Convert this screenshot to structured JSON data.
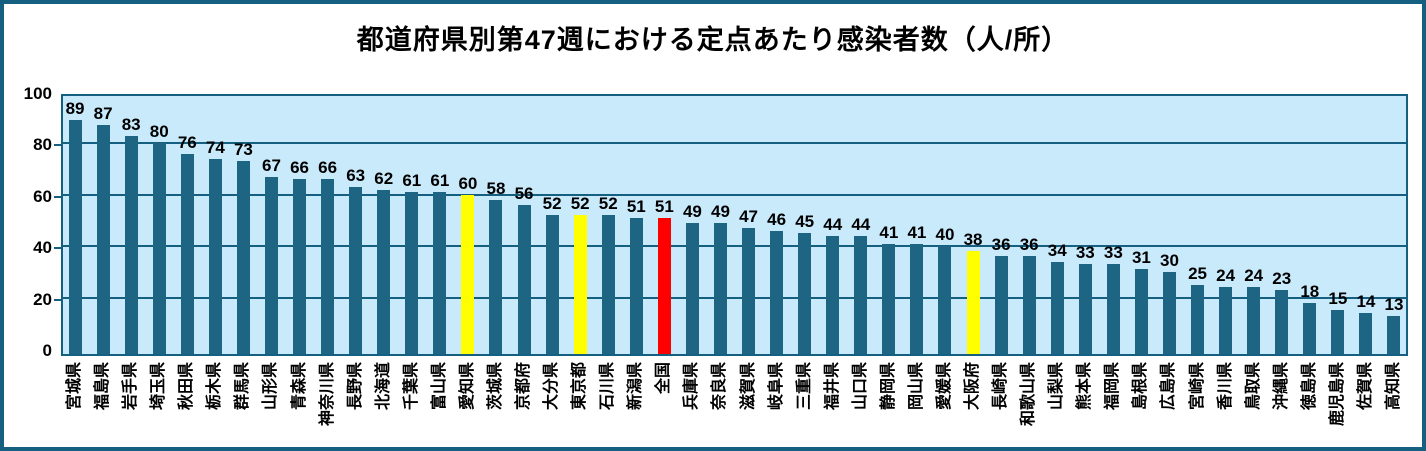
{
  "title": "都道府県別第47週における定点あたり感染者数（人/所）",
  "colors": {
    "frame": "#155f80",
    "plot_background": "#c9eafb",
    "gridline": "#155f80",
    "bar_default": "#1d6583",
    "bar_highlight_yellow": "#ffff00",
    "bar_highlight_red": "#ff0000",
    "text": "#000000"
  },
  "chart_data": {
    "type": "bar",
    "title": "都道府県別第47週における定点あたり感染者数（人/所）",
    "xlabel": "",
    "ylabel": "",
    "ylim": [
      0,
      100
    ],
    "yticks": [
      0,
      20,
      40,
      60,
      80,
      100
    ],
    "grid": true,
    "legend": "none",
    "categories": [
      "宮城県",
      "福島県",
      "岩手県",
      "埼玉県",
      "秋田県",
      "栃木県",
      "群馬県",
      "山形県",
      "青森県",
      "神奈川県",
      "長野県",
      "北海道",
      "千葉県",
      "富山県",
      "愛知県",
      "茨城県",
      "京都府",
      "大分県",
      "東京都",
      "石川県",
      "新潟県",
      "全国",
      "兵庫県",
      "奈良県",
      "滋賀県",
      "岐阜県",
      "三重県",
      "福井県",
      "山口県",
      "静岡県",
      "岡山県",
      "愛媛県",
      "大阪府",
      "長崎県",
      "和歌山県",
      "山梨県",
      "熊本県",
      "福岡県",
      "島根県",
      "広島県",
      "宮崎県",
      "香川県",
      "鳥取県",
      "沖縄県",
      "徳島県",
      "鹿児島県",
      "佐賀県",
      "高知県"
    ],
    "values": [
      89,
      87,
      83,
      80,
      76,
      74,
      73,
      67,
      66,
      66,
      63,
      62,
      61,
      61,
      60,
      58,
      56,
      52,
      52,
      52,
      51,
      51,
      49,
      49,
      47,
      46,
      45,
      44,
      44,
      41,
      41,
      40,
      38,
      36,
      36,
      34,
      33,
      33,
      31,
      30,
      25,
      24,
      24,
      23,
      18,
      15,
      14,
      13
    ],
    "bar_color_default": "#1d6583",
    "highlights": [
      {
        "index": 14,
        "category": "愛知県",
        "color": "#ffff00"
      },
      {
        "index": 18,
        "category": "東京都",
        "color": "#ffff00"
      },
      {
        "index": 21,
        "category": "全国",
        "color": "#ff0000"
      },
      {
        "index": 32,
        "category": "大阪府",
        "color": "#ffff00"
      }
    ]
  }
}
